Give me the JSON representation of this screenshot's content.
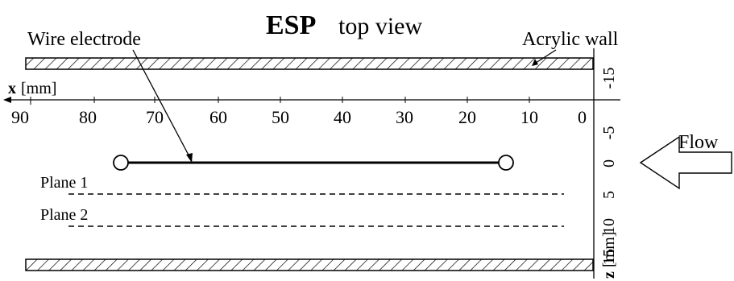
{
  "title": {
    "bold": "ESP",
    "rest": "top view"
  },
  "labels": {
    "wire_electrode": "Wire electrode",
    "acrylic_wall": "Acrylic wall",
    "flow": "Flow",
    "plane_1": "Plane 1",
    "plane_2": "Plane 2"
  },
  "x_axis": {
    "var": "x",
    "unit": "[mm]",
    "ticks": [
      "90",
      "80",
      "70",
      "60",
      "50",
      "40",
      "30",
      "20",
      "10",
      "0"
    ]
  },
  "z_axis": {
    "var": "z",
    "unit": "[mm]",
    "ticks": [
      "-15",
      "-5",
      "0",
      "5",
      "10",
      "15"
    ]
  }
}
